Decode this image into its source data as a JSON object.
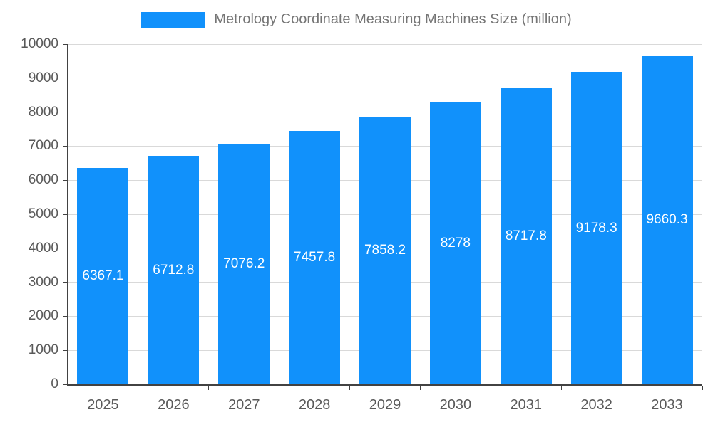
{
  "chart_data": {
    "type": "bar",
    "title": "Metrology Coordinate Measuring Machines Size (million)",
    "categories": [
      "2025",
      "2026",
      "2027",
      "2028",
      "2029",
      "2030",
      "2031",
      "2032",
      "2033"
    ],
    "values": [
      6367.1,
      6712.8,
      7076.2,
      7457.8,
      7858.2,
      8278,
      8717.8,
      9178.3,
      9660.3
    ],
    "value_labels": [
      "6367.1",
      "6712.8",
      "7076.2",
      "7457.8",
      "7858.2",
      "8278",
      "8717.8",
      "9178.3",
      "9660.3"
    ],
    "xlabel": "",
    "ylabel": "",
    "ylim": [
      0,
      10000
    ],
    "ytick_step": 1000,
    "ytick_labels": [
      "0",
      "1000",
      "2000",
      "3000",
      "4000",
      "5000",
      "6000",
      "7000",
      "8000",
      "9000",
      "10000"
    ],
    "grid": true,
    "legend_position": "top-center",
    "colors": {
      "bar": "#1191fb",
      "bar_value_label": "#ffffff",
      "axis": "#424242",
      "gridline": "#d9d9d9",
      "tick_label": "#595959",
      "title": "#757575"
    }
  }
}
